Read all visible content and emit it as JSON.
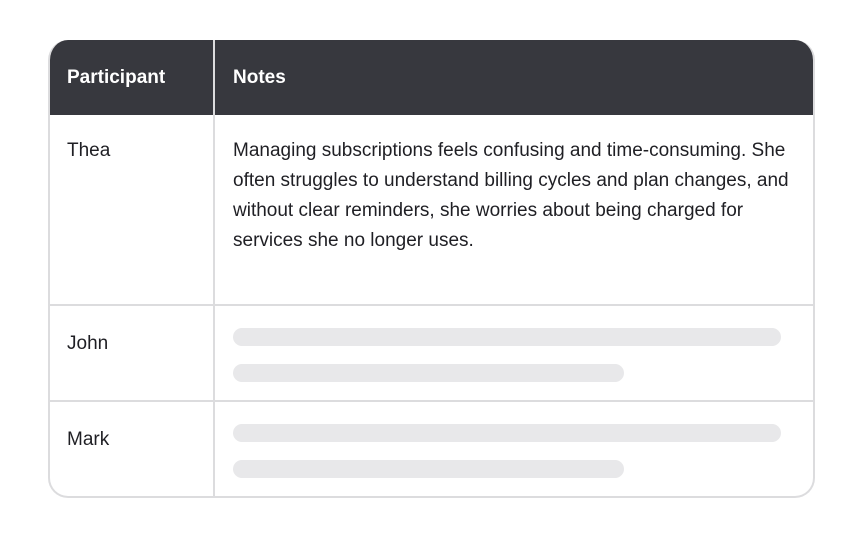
{
  "table": {
    "columns": [
      "Participant",
      "Notes"
    ],
    "rows": [
      {
        "participant": "Thea",
        "notes": "Managing subscriptions feels confusing and time-consuming. She often struggles to understand billing cycles and plan changes, and without clear reminders, she worries about being charged for services she no longer uses."
      },
      {
        "participant": "John",
        "notes_placeholder": true
      },
      {
        "participant": "Mark",
        "notes_placeholder": true
      }
    ]
  },
  "colors": {
    "header_bg": "#37383e",
    "border": "#dcdcde",
    "skeleton": "#e8e8ea"
  }
}
